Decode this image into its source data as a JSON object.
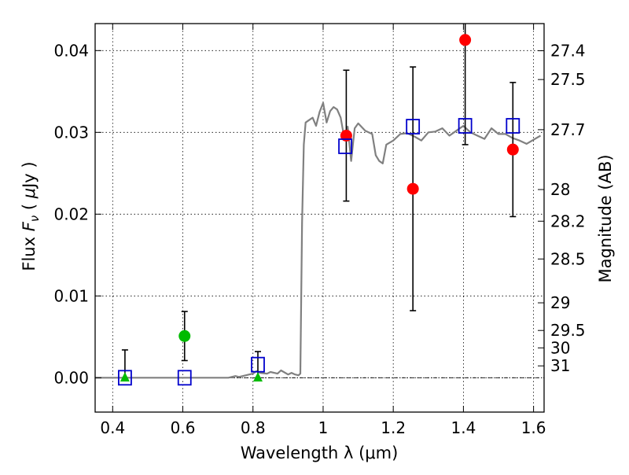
{
  "chart_data": {
    "type": "scatter",
    "title": "",
    "xlabel": "Wavelength  λ (μm)",
    "ylabel_left": {
      "prefix": "Flux  ",
      "symbol": "F",
      "subscript": "ν",
      "unit_open": "  ( ",
      "mu": "μ",
      "unit_close": "Jy )"
    },
    "ylabel_right": "Magnitude (AB)",
    "xlim": [
      0.35,
      1.63
    ],
    "ylim": [
      -0.0042,
      0.0433
    ],
    "grid": true,
    "legend": "none",
    "x_ticks": [
      {
        "value": 0.4,
        "label": "0.4"
      },
      {
        "value": 0.6,
        "label": "0.6"
      },
      {
        "value": 0.8,
        "label": "0.8"
      },
      {
        "value": 1.0,
        "label": "1"
      },
      {
        "value": 1.2,
        "label": "1.2"
      },
      {
        "value": 1.4,
        "label": "1.4"
      },
      {
        "value": 1.6,
        "label": "1.6"
      }
    ],
    "y_ticks": [
      {
        "value": 0.0,
        "label": "0.00"
      },
      {
        "value": 0.01,
        "label": "0.01"
      },
      {
        "value": 0.02,
        "label": "0.02"
      },
      {
        "value": 0.03,
        "label": "0.03"
      },
      {
        "value": 0.04,
        "label": "0.04"
      }
    ],
    "mag_ticks": [
      {
        "label": "27.4",
        "flux": 0.03998
      },
      {
        "label": "27.5",
        "flux": 0.03646
      },
      {
        "label": "27.7",
        "flux": 0.03033
      },
      {
        "label": "28",
        "flux": 0.02301
      },
      {
        "label": "28.2",
        "flux": 0.01914
      },
      {
        "label": "28.5",
        "flux": 0.01452
      },
      {
        "label": "29",
        "flux": 0.00916
      },
      {
        "label": "29.5",
        "flux": 0.00578
      },
      {
        "label": "30",
        "flux": 0.00365
      },
      {
        "label": "31",
        "flux": 0.00145
      }
    ],
    "colors": {
      "model": "#808080",
      "observed": "#ff0000",
      "model_photometry": "#0000cc",
      "green": "#00bb00",
      "errorbar": "#000000",
      "zero_line": "#000000"
    },
    "model_spectrum": {
      "x": [
        0.35,
        0.4,
        0.45,
        0.5,
        0.55,
        0.6,
        0.65,
        0.7,
        0.73,
        0.75,
        0.76,
        0.78,
        0.8,
        0.81,
        0.82,
        0.84,
        0.85,
        0.87,
        0.88,
        0.9,
        0.91,
        0.92,
        0.93,
        0.935,
        0.94,
        0.945,
        0.95,
        0.96,
        0.97,
        0.98,
        0.99,
        1.0,
        1.01,
        1.02,
        1.03,
        1.04,
        1.05,
        1.06,
        1.07,
        1.08,
        1.09,
        1.1,
        1.12,
        1.14,
        1.15,
        1.16,
        1.17,
        1.18,
        1.2,
        1.22,
        1.24,
        1.26,
        1.28,
        1.3,
        1.32,
        1.34,
        1.36,
        1.38,
        1.4,
        1.42,
        1.44,
        1.46,
        1.48,
        1.5,
        1.52,
        1.54,
        1.56,
        1.58,
        1.6,
        1.62
      ],
      "y": [
        0.0,
        0.0,
        0.0,
        0.0,
        0.0,
        0.0,
        0.0,
        0.0,
        0.0,
        0.0002,
        0.0001,
        0.0003,
        0.0005,
        0.0008,
        0.0006,
        0.0005,
        0.0007,
        0.0005,
        0.0009,
        0.0004,
        0.0006,
        0.0004,
        0.0003,
        0.0005,
        0.019,
        0.0285,
        0.0312,
        0.0315,
        0.0318,
        0.0308,
        0.0325,
        0.0336,
        0.0312,
        0.0326,
        0.0331,
        0.0328,
        0.0318,
        0.0294,
        0.0307,
        0.0265,
        0.0305,
        0.0311,
        0.0302,
        0.0298,
        0.0272,
        0.0265,
        0.0262,
        0.0285,
        0.029,
        0.0298,
        0.0299,
        0.0295,
        0.029,
        0.03,
        0.0301,
        0.0305,
        0.0296,
        0.0302,
        0.0308,
        0.03,
        0.0296,
        0.0292,
        0.0305,
        0.0298,
        0.0298,
        0.0293,
        0.029,
        0.0286,
        0.0291,
        0.0296
      ]
    },
    "series": [
      {
        "marker": "square-open",
        "color": "#0000cc",
        "points": [
          {
            "x": 0.435,
            "y": 0.0
          },
          {
            "x": 0.605,
            "y": 0.0
          },
          {
            "x": 0.814,
            "y": 0.0016
          },
          {
            "x": 1.063,
            "y": 0.0283
          },
          {
            "x": 1.256,
            "y": 0.0307
          },
          {
            "x": 1.405,
            "y": 0.0308
          },
          {
            "x": 1.541,
            "y": 0.0308
          }
        ]
      },
      {
        "marker": "circle",
        "color": "#ff0000",
        "points": [
          {
            "x": 1.066,
            "y": 0.0296,
            "err": 0.008
          },
          {
            "x": 1.256,
            "y": 0.0231,
            "err": 0.0149
          },
          {
            "x": 1.405,
            "y": 0.0413,
            "err": 0.0128
          },
          {
            "x": 1.541,
            "y": 0.0279,
            "err": 0.0082
          }
        ]
      },
      {
        "marker": "circle",
        "color": "#00bb00",
        "points": [
          {
            "x": 0.605,
            "y": 0.0051,
            "err": 0.003
          }
        ]
      },
      {
        "marker": "triangle-up",
        "color": "#00bb00",
        "points": [
          {
            "x": 0.435,
            "y": 0.0,
            "upper": 0.0034
          },
          {
            "x": 0.814,
            "y": 0.0,
            "upper": 0.0032
          }
        ]
      }
    ]
  }
}
